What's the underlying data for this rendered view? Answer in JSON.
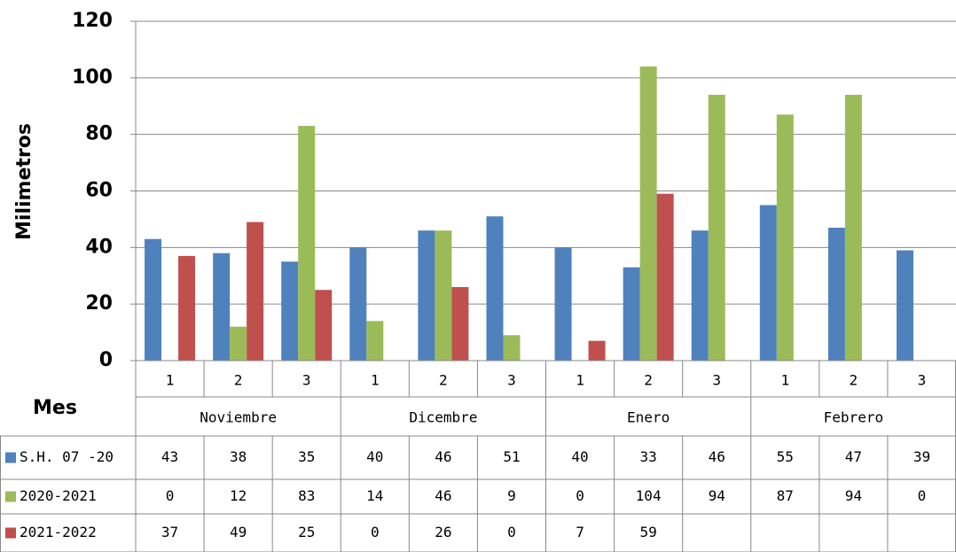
{
  "chart_data": {
    "type": "bar",
    "y_label": "Milimetros",
    "x_label": "Mes",
    "categories": [
      "1",
      "2",
      "3",
      "1",
      "2",
      "3",
      "1",
      "2",
      "3",
      "1",
      "2",
      "3"
    ],
    "groups": [
      "Noviembre",
      "Dicembre",
      "Enero",
      "Febrero"
    ],
    "series": [
      {
        "name": "S.H. 07 -20",
        "color": "#4f81bd",
        "values": [
          43,
          38,
          35,
          40,
          46,
          51,
          40,
          33,
          46,
          55,
          47,
          39
        ]
      },
      {
        "name": "2020-2021",
        "color": "#9bbb59",
        "values": [
          0,
          12,
          83,
          14,
          46,
          9,
          0,
          104,
          94,
          87,
          94,
          0
        ]
      },
      {
        "name": "2021-2022",
        "color": "#c0504d",
        "values": [
          37,
          49,
          25,
          0,
          26,
          0,
          7,
          59,
          null,
          null,
          null,
          null
        ]
      }
    ],
    "ylim": [
      0,
      120
    ],
    "yticks": [
      0,
      20,
      40,
      60,
      80,
      100,
      120
    ],
    "grid": true
  }
}
